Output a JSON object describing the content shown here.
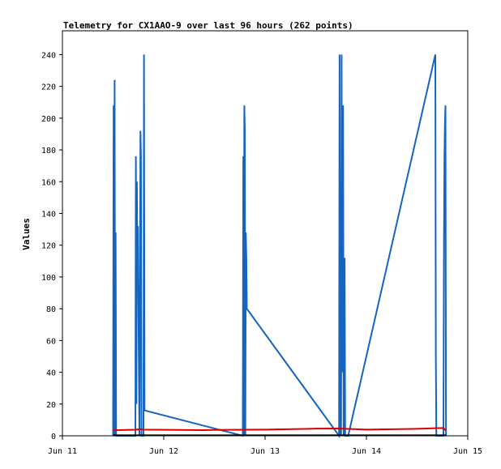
{
  "chart_data": {
    "type": "line",
    "title": "Telemetry for CX1AAO-9 over last 96 hours (262 points)",
    "xlabel": "",
    "ylabel": "Values",
    "x_ticks": [
      "Jun 11",
      "Jun 12",
      "Jun 13",
      "Jun 14",
      "Jun 15"
    ],
    "x_range_days": [
      11,
      15
    ],
    "y_ticks": [
      "0",
      "20",
      "40",
      "60",
      "80",
      "100",
      "120",
      "140",
      "160",
      "180",
      "200",
      "220",
      "240"
    ],
    "ylim": [
      0,
      255
    ],
    "grid": false,
    "legend": "none",
    "x_unit": "day of June",
    "series": [
      {
        "color": "#1565c0",
        "points": [
          [
            11.5,
            0
          ],
          [
            11.505,
            208
          ],
          [
            11.51,
            0
          ],
          [
            11.515,
            224
          ],
          [
            11.52,
            0
          ],
          [
            11.525,
            128
          ],
          [
            11.53,
            0
          ],
          [
            11.72,
            0
          ],
          [
            11.725,
            176
          ],
          [
            11.73,
            20
          ],
          [
            11.735,
            160
          ],
          [
            11.74,
            95
          ],
          [
            11.745,
            132
          ],
          [
            11.75,
            80
          ],
          [
            11.76,
            0
          ],
          [
            11.77,
            192
          ],
          [
            11.775,
            176
          ],
          [
            11.78,
            0
          ],
          [
            11.8,
            0
          ],
          [
            11.805,
            240
          ],
          [
            11.81,
            16
          ],
          [
            12.78,
            0
          ],
          [
            12.785,
            176
          ],
          [
            12.79,
            0
          ],
          [
            12.795,
            208
          ],
          [
            12.8,
            192
          ],
          [
            12.805,
            0
          ],
          [
            12.81,
            128
          ],
          [
            12.815,
            112
          ],
          [
            12.82,
            80
          ],
          [
            13.73,
            0
          ],
          [
            13.735,
            240
          ],
          [
            13.74,
            0
          ],
          [
            13.745,
            160
          ],
          [
            13.75,
            0
          ],
          [
            13.755,
            240
          ],
          [
            13.76,
            40
          ],
          [
            13.765,
            52
          ],
          [
            13.77,
            208
          ],
          [
            13.775,
            0
          ],
          [
            13.78,
            100
          ],
          [
            13.785,
            112
          ],
          [
            13.79,
            0
          ],
          [
            13.82,
            0
          ],
          [
            14.68,
            240
          ],
          [
            14.685,
            50
          ],
          [
            14.69,
            0
          ],
          [
            14.76,
            0
          ],
          [
            14.765,
            120
          ],
          [
            14.77,
            176
          ],
          [
            14.775,
            198
          ],
          [
            14.78,
            208
          ],
          [
            14.785,
            0
          ]
        ]
      },
      {
        "color": "#dd0000",
        "points": [
          [
            11.5,
            3.5
          ],
          [
            11.72,
            3.8
          ],
          [
            11.78,
            4.2
          ],
          [
            11.8,
            3.9
          ],
          [
            12.4,
            3.6
          ],
          [
            12.78,
            3.8
          ],
          [
            13.0,
            3.9
          ],
          [
            13.5,
            4.5
          ],
          [
            13.73,
            4.6
          ],
          [
            13.8,
            4.4
          ],
          [
            14.0,
            3.9
          ],
          [
            14.5,
            4.4
          ],
          [
            14.68,
            4.8
          ],
          [
            14.76,
            4.9
          ],
          [
            14.785,
            3.2
          ]
        ]
      },
      {
        "color": "#000000",
        "points": [
          [
            11.5,
            0.3
          ],
          [
            14.785,
            0.3
          ]
        ]
      }
    ]
  }
}
